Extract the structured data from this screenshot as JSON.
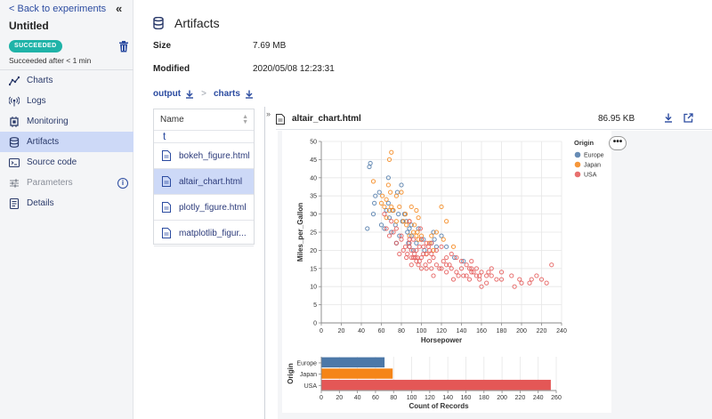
{
  "sidebar": {
    "back_label": "< Back to experiments",
    "title": "Untitled",
    "status_badge": "SUCCEEDED",
    "status_text": "Succeeded after < 1 min",
    "nav": [
      {
        "label": "Charts",
        "icon": "chart-line-icon"
      },
      {
        "label": "Logs",
        "icon": "broadcast-icon"
      },
      {
        "label": "Monitoring",
        "icon": "chip-icon"
      },
      {
        "label": "Artifacts",
        "icon": "database-icon",
        "active": true
      },
      {
        "label": "Source code",
        "icon": "code-icon"
      },
      {
        "label": "Parameters",
        "icon": "sliders-icon",
        "disabled": true
      },
      {
        "label": "Details",
        "icon": "document-icon"
      }
    ]
  },
  "artifacts": {
    "title": "Artifacts",
    "size_label": "Size",
    "size_value": "7.69 MB",
    "modified_label": "Modified",
    "modified_value": "2020/05/08 12:23:31",
    "path": [
      "output",
      "charts"
    ],
    "file_list": {
      "header": "Name",
      "filter_char": "t",
      "files": [
        {
          "name": "bokeh_figure.html"
        },
        {
          "name": "altair_chart.html",
          "active": true
        },
        {
          "name": "plotly_figure.html"
        },
        {
          "name": "matplotlib_figur..."
        }
      ]
    },
    "viewer": {
      "file_name": "altair_chart.html",
      "file_size": "86.95 KB",
      "more_label": "•••"
    }
  },
  "colors": {
    "accent": "#2b4ba0",
    "badge": "#1fb3a8",
    "active_bg": "#cdd9f7",
    "europe": "#4c78a8",
    "japan": "#f58518",
    "usa": "#e45756"
  },
  "chart_data": [
    {
      "type": "scatter",
      "xlabel": "Horsepower",
      "ylabel": "Miles_per_Gallon",
      "xlim": [
        0,
        240
      ],
      "ylim": [
        0,
        50
      ],
      "xticks": [
        0,
        20,
        40,
        60,
        80,
        100,
        120,
        140,
        160,
        180,
        200,
        220,
        240
      ],
      "yticks": [
        0,
        5,
        10,
        15,
        20,
        25,
        30,
        35,
        40,
        45,
        50
      ],
      "grid": true,
      "legend": {
        "title": "Origin",
        "placement": "top-right",
        "entries": [
          "Europe",
          "Japan",
          "USA"
        ]
      },
      "series": [
        {
          "name": "Europe",
          "points": [
            [
              46,
              26
            ],
            [
              48,
              43
            ],
            [
              49,
              44
            ],
            [
              52,
              30
            ],
            [
              53,
              33
            ],
            [
              54,
              35
            ],
            [
              58,
              36
            ],
            [
              60,
              27
            ],
            [
              63,
              26
            ],
            [
              65,
              31
            ],
            [
              67,
              33
            ],
            [
              67,
              40
            ],
            [
              68,
              29
            ],
            [
              70,
              25
            ],
            [
              71,
              31
            ],
            [
              74,
              27
            ],
            [
              75,
              22
            ],
            [
              76,
              36
            ],
            [
              77,
              30
            ],
            [
              78,
              24
            ],
            [
              80,
              38
            ],
            [
              81,
              28
            ],
            [
              83,
              30
            ],
            [
              85,
              28
            ],
            [
              86,
              25
            ],
            [
              87,
              22
            ],
            [
              88,
              26
            ],
            [
              88,
              21
            ],
            [
              90,
              24
            ],
            [
              90,
              27
            ],
            [
              92,
              20
            ],
            [
              95,
              22
            ],
            [
              97,
              26
            ],
            [
              102,
              23
            ],
            [
              103,
              20
            ],
            [
              110,
              22
            ],
            [
              112,
              25
            ],
            [
              113,
              23
            ],
            [
              115,
              21
            ],
            [
              120,
              24
            ],
            [
              125,
              21
            ],
            [
              133,
              18
            ],
            [
              142,
              17
            ]
          ]
        },
        {
          "name": "Japan",
          "points": [
            [
              52,
              39
            ],
            [
              60,
              33
            ],
            [
              61,
              35
            ],
            [
              63,
              32
            ],
            [
              65,
              34
            ],
            [
              65,
              29
            ],
            [
              67,
              38
            ],
            [
              68,
              31
            ],
            [
              68,
              45
            ],
            [
              69,
              36
            ],
            [
              70,
              32
            ],
            [
              70,
              47
            ],
            [
              72,
              31
            ],
            [
              75,
              28
            ],
            [
              75,
              35
            ],
            [
              78,
              32
            ],
            [
              80,
              36
            ],
            [
              82,
              28
            ],
            [
              84,
              30
            ],
            [
              85,
              27
            ],
            [
              88,
              24
            ],
            [
              88,
              28
            ],
            [
              90,
              32
            ],
            [
              92,
              25
            ],
            [
              93,
              27
            ],
            [
              95,
              24
            ],
            [
              95,
              31
            ],
            [
              96,
              25
            ],
            [
              97,
              23
            ],
            [
              97,
              29
            ],
            [
              100,
              24
            ],
            [
              100,
              23
            ],
            [
              105,
              19
            ],
            [
              108,
              22
            ],
            [
              110,
              24
            ],
            [
              112,
              20
            ],
            [
              115,
              25
            ],
            [
              120,
              32
            ],
            [
              122,
              23
            ],
            [
              125,
              28
            ],
            [
              132,
              21
            ]
          ]
        },
        {
          "name": "USA",
          "points": [
            [
              63,
              30
            ],
            [
              65,
              26
            ],
            [
              70,
              28
            ],
            [
              75,
              22
            ],
            [
              80,
              24
            ],
            [
              84,
              21
            ],
            [
              85,
              18
            ],
            [
              86,
              19
            ],
            [
              88,
              23
            ],
            [
              88,
              21
            ],
            [
              90,
              20
            ],
            [
              90,
              16
            ],
            [
              92,
              18
            ],
            [
              95,
              20
            ],
            [
              95,
              17
            ],
            [
              97,
              16
            ],
            [
              98,
              21
            ],
            [
              100,
              18
            ],
            [
              100,
              15
            ],
            [
              100,
              23
            ],
            [
              102,
              19
            ],
            [
              105,
              15
            ],
            [
              105,
              19
            ],
            [
              105,
              22
            ],
            [
              107,
              21
            ],
            [
              108,
              17
            ],
            [
              110,
              15
            ],
            [
              110,
              19
            ],
            [
              110,
              22
            ],
            [
              112,
              18
            ],
            [
              115,
              16
            ],
            [
              115,
              20
            ],
            [
              120,
              15
            ],
            [
              120,
              21
            ],
            [
              122,
              17
            ],
            [
              125,
              14
            ],
            [
              125,
              18
            ],
            [
              128,
              16
            ],
            [
              130,
              15
            ],
            [
              130,
              19
            ],
            [
              135,
              14
            ],
            [
              135,
              18
            ],
            [
              137,
              13
            ],
            [
              140,
              15
            ],
            [
              140,
              17
            ],
            [
              142,
              13
            ],
            [
              145,
              13
            ],
            [
              145,
              16
            ],
            [
              148,
              12
            ],
            [
              150,
              14
            ],
            [
              150,
              15
            ],
            [
              150,
              17
            ],
            [
              152,
              14
            ],
            [
              155,
              13
            ],
            [
              155,
              15
            ],
            [
              158,
              12
            ],
            [
              160,
              14
            ],
            [
              165,
              13
            ],
            [
              165,
              11
            ],
            [
              167,
              14
            ],
            [
              170,
              13
            ],
            [
              170,
              15
            ],
            [
              175,
              12
            ],
            [
              180,
              14
            ],
            [
              180,
              12
            ],
            [
              190,
              13
            ],
            [
              193,
              10
            ],
            [
              198,
              12
            ],
            [
              200,
              11
            ],
            [
              208,
              11
            ],
            [
              210,
              12
            ],
            [
              215,
              13
            ],
            [
              220,
              12
            ],
            [
              225,
              11
            ],
            [
              230,
              16
            ],
            [
              68,
              24
            ],
            [
              72,
              25
            ],
            [
              75,
              26
            ],
            [
              78,
              19
            ],
            [
              82,
              20
            ],
            [
              92,
              23
            ],
            [
              94,
              18
            ],
            [
              96,
              18
            ],
            [
              98,
              17
            ],
            [
              102,
              21
            ],
            [
              104,
              16
            ],
            [
              108,
              20
            ],
            [
              112,
              13
            ],
            [
              118,
              15
            ],
            [
              125,
              16
            ],
            [
              88,
              22
            ],
            [
              90,
              18
            ],
            [
              132,
              12
            ],
            [
              148,
              15
            ],
            [
              158,
              13
            ],
            [
              160,
              10
            ],
            [
              88,
              28
            ],
            [
              99,
              26
            ],
            [
              80,
              23
            ],
            [
              93,
              19
            ]
          ]
        }
      ]
    },
    {
      "type": "bar",
      "orientation": "horizontal",
      "categories": [
        "Europe",
        "Japan",
        "USA"
      ],
      "values": [
        70,
        79,
        254
      ],
      "xlabel": "Count of Records",
      "ylabel": "Origin",
      "xlim": [
        0,
        260
      ],
      "xticks": [
        0,
        20,
        40,
        60,
        80,
        100,
        120,
        140,
        160,
        180,
        200,
        220,
        240,
        260
      ],
      "grid": true
    }
  ]
}
